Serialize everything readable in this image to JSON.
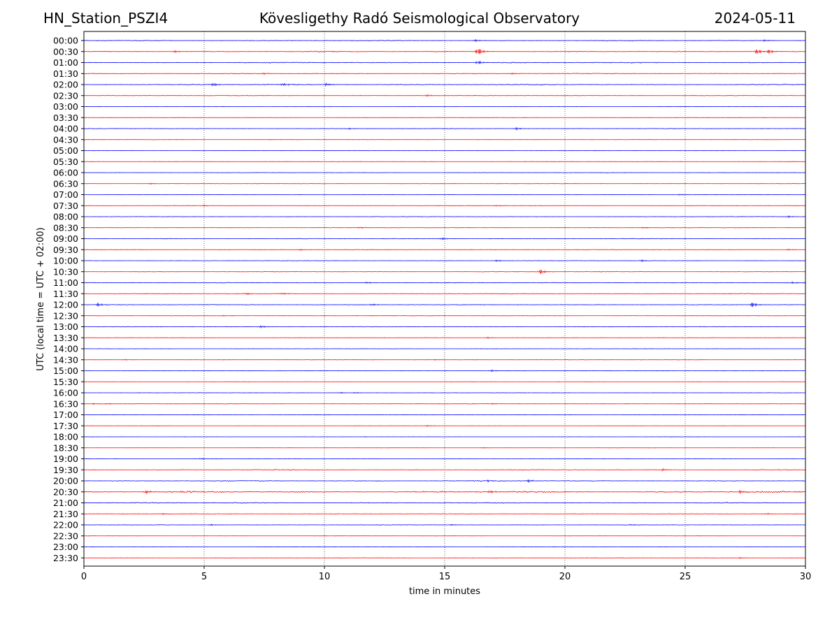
{
  "header": {
    "station": "HN_Station_PSZI4",
    "title": "Kövesligethy Radó Seismological Observatory",
    "date": "2024-05-11"
  },
  "chart_data": {
    "type": "line",
    "title": "Kövesligethy Radó Seismological Observatory",
    "xlabel": "time in minutes",
    "ylabel": "UTC (local time = UTC + 02:00)",
    "xlim": [
      0,
      30
    ],
    "x_ticks": [
      0,
      5,
      10,
      15,
      20,
      25,
      30
    ],
    "grid": "vertical dotted lines at 5-minute ticks",
    "series_colors": [
      "#0000ff",
      "#ff0000"
    ],
    "rows": [
      {
        "label": "00:00",
        "amp": 0.55,
        "events": [
          [
            16.3,
            1.0
          ],
          [
            28.3,
            0.9
          ]
        ]
      },
      {
        "label": "00:30",
        "amp": 0.5,
        "events": [
          [
            16.4,
            4.0
          ],
          [
            28.0,
            2.5
          ],
          [
            28.5,
            2.0
          ],
          [
            3.8,
            1.0
          ]
        ]
      },
      {
        "label": "01:00",
        "amp": 0.6,
        "events": [
          [
            16.4,
            1.8
          ]
        ]
      },
      {
        "label": "01:30",
        "amp": 0.45,
        "events": [
          [
            7.5,
            0.8
          ],
          [
            17.8,
            0.7
          ]
        ]
      },
      {
        "label": "02:00",
        "amp": 0.6,
        "events": [
          [
            5.4,
            1.6
          ],
          [
            8.3,
            1.4
          ],
          [
            10.1,
            1.3
          ]
        ]
      },
      {
        "label": "02:30",
        "amp": 0.3,
        "events": [
          [
            14.3,
            0.9
          ]
        ]
      },
      {
        "label": "03:00",
        "amp": 0.12,
        "events": []
      },
      {
        "label": "03:30",
        "amp": 0.2,
        "events": []
      },
      {
        "label": "04:00",
        "amp": 0.35,
        "events": [
          [
            18.0,
            1.2
          ],
          [
            11.0,
            0.8
          ]
        ]
      },
      {
        "label": "04:30",
        "amp": 0.2,
        "events": []
      },
      {
        "label": "05:00",
        "amp": 0.2,
        "events": []
      },
      {
        "label": "05:30",
        "amp": 0.15,
        "events": []
      },
      {
        "label": "06:00",
        "amp": 0.2,
        "events": []
      },
      {
        "label": "06:30",
        "amp": 0.2,
        "events": [
          [
            2.8,
            0.6
          ]
        ]
      },
      {
        "label": "07:00",
        "amp": 0.2,
        "events": [
          [
            24.8,
            0.6
          ]
        ]
      },
      {
        "label": "07:30",
        "amp": 0.2,
        "events": [
          [
            5.0,
            0.6
          ],
          [
            17.2,
            0.6
          ]
        ]
      },
      {
        "label": "08:00",
        "amp": 0.3,
        "events": [
          [
            29.3,
            0.9
          ]
        ]
      },
      {
        "label": "08:30",
        "amp": 0.3,
        "events": [
          [
            11.5,
            0.8
          ],
          [
            23.3,
            0.8
          ]
        ]
      },
      {
        "label": "09:00",
        "amp": 0.35,
        "events": [
          [
            14.9,
            1.1
          ]
        ]
      },
      {
        "label": "09:30",
        "amp": 0.3,
        "events": [
          [
            9.0,
            0.8
          ],
          [
            29.3,
            0.6
          ]
        ]
      },
      {
        "label": "10:00",
        "amp": 0.3,
        "events": [
          [
            17.2,
            1.0
          ],
          [
            23.2,
            1.0
          ]
        ]
      },
      {
        "label": "10:30",
        "amp": 0.3,
        "events": [
          [
            19.0,
            2.3
          ]
        ]
      },
      {
        "label": "11:00",
        "amp": 0.45,
        "events": [
          [
            11.8,
            0.9
          ],
          [
            29.5,
            0.9
          ]
        ]
      },
      {
        "label": "11:30",
        "amp": 0.45,
        "events": [
          [
            6.8,
            0.9
          ],
          [
            8.3,
            0.8
          ]
        ]
      },
      {
        "label": "12:00",
        "amp": 0.4,
        "events": [
          [
            0.6,
            1.6
          ],
          [
            27.8,
            2.6
          ],
          [
            12.0,
            1.0
          ]
        ]
      },
      {
        "label": "12:30",
        "amp": 0.2,
        "events": [
          [
            5.8,
            0.5
          ]
        ]
      },
      {
        "label": "13:00",
        "amp": 0.3,
        "events": [
          [
            7.4,
            1.2
          ]
        ]
      },
      {
        "label": "13:30",
        "amp": 0.15,
        "events": [
          [
            16.8,
            0.6
          ]
        ]
      },
      {
        "label": "14:00",
        "amp": 0.15,
        "events": []
      },
      {
        "label": "14:30",
        "amp": 0.2,
        "events": [
          [
            1.7,
            0.6
          ],
          [
            14.6,
            0.5
          ]
        ]
      },
      {
        "label": "15:00",
        "amp": 0.25,
        "events": [
          [
            17.0,
            0.9
          ]
        ]
      },
      {
        "label": "15:30",
        "amp": 0.1,
        "events": []
      },
      {
        "label": "16:00",
        "amp": 0.2,
        "events": [
          [
            10.7,
            0.6
          ],
          [
            11.3,
            0.6
          ]
        ]
      },
      {
        "label": "16:30",
        "amp": 0.25,
        "events": [
          [
            0.4,
            0.6
          ],
          [
            1.0,
            0.6
          ],
          [
            17.0,
            0.5
          ]
        ]
      },
      {
        "label": "17:00",
        "amp": 0.2,
        "events": []
      },
      {
        "label": "17:30",
        "amp": 0.1,
        "events": [
          [
            14.3,
            0.6
          ]
        ]
      },
      {
        "label": "18:00",
        "amp": 0.1,
        "events": []
      },
      {
        "label": "18:30",
        "amp": 0.1,
        "events": [
          [
            16.6,
            0.4
          ]
        ]
      },
      {
        "label": "19:00",
        "amp": 0.15,
        "events": [
          [
            4.9,
            0.8
          ]
        ]
      },
      {
        "label": "19:30",
        "amp": 0.55,
        "events": [
          [
            24.1,
            1.0
          ]
        ]
      },
      {
        "label": "20:00",
        "amp": 0.5,
        "events": [
          [
            18.5,
            1.3
          ],
          [
            16.8,
            1.0
          ]
        ]
      },
      {
        "label": "20:30",
        "amp": 0.85,
        "events": [
          [
            2.6,
            1.5
          ],
          [
            16.9,
            1.5
          ],
          [
            27.3,
            1.5
          ]
        ]
      },
      {
        "label": "21:00",
        "amp": 0.6,
        "events": []
      },
      {
        "label": "21:30",
        "amp": 0.3,
        "events": [
          [
            3.3,
            0.6
          ],
          [
            28.4,
            0.7
          ]
        ]
      },
      {
        "label": "22:00",
        "amp": 0.3,
        "events": [
          [
            5.3,
            0.7
          ],
          [
            15.3,
            0.6
          ],
          [
            22.8,
            0.6
          ]
        ]
      },
      {
        "label": "22:30",
        "amp": 0.1,
        "events": []
      },
      {
        "label": "23:00",
        "amp": 0.15,
        "events": []
      },
      {
        "label": "23:30",
        "amp": 0.2,
        "events": [
          [
            27.3,
            0.6
          ]
        ]
      }
    ]
  }
}
